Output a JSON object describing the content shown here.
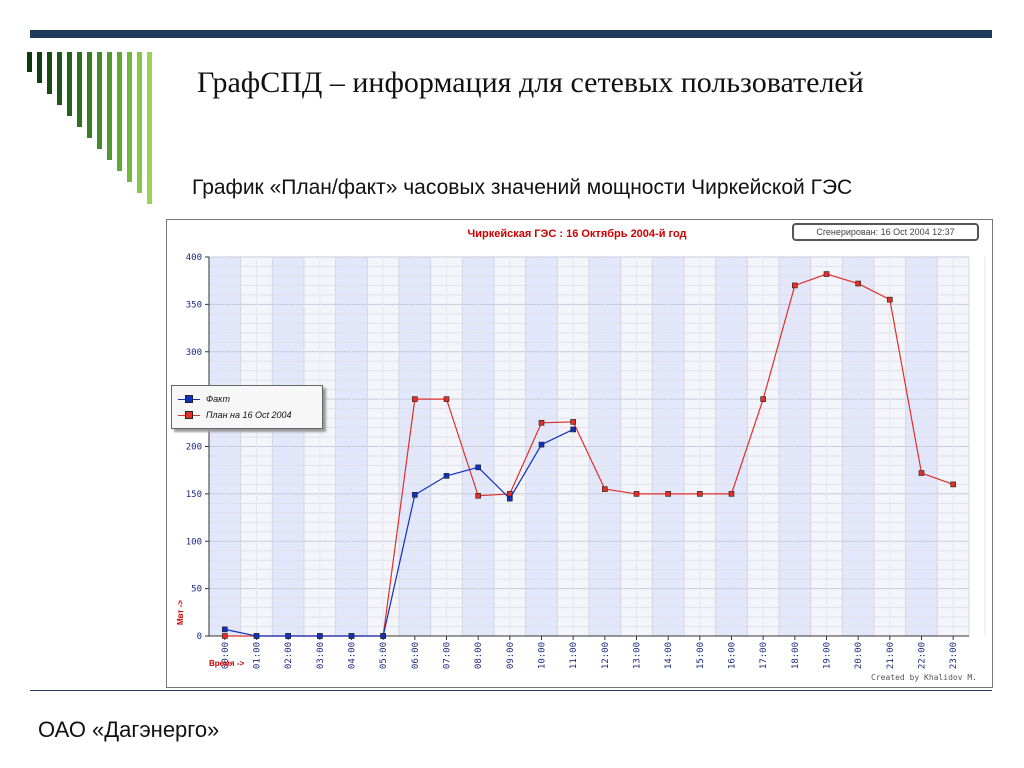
{
  "slide": {
    "title": "ГрафСПД – информация для сетевых пользователей",
    "subtitle": "График «План/факт» часовых значений мощности Чиркейской ГЭС",
    "footer": "ОАО «Дагэнерго»"
  },
  "colors": {
    "top_bar": "#1f3c5a",
    "deco_stripes": [
      "#0f3a10",
      "#123f12",
      "#174a14",
      "#1d5618",
      "#24631b",
      "#2d7020",
      "#377e25",
      "#438c2b",
      "#519a31",
      "#60a838",
      "#72b83f",
      "#86c648",
      "#9ad450"
    ],
    "title_red": "#cc0000",
    "fact_blue": "#1030c0",
    "plan_red": "#e0302a"
  },
  "chart_data": {
    "type": "line",
    "title": "Чиркейская ГЭС : 16  Октябрь 2004-й год",
    "generated_label": "Сгенерирован: 16 Oct 2004 12:37",
    "credit": "Created by Khalidov M.",
    "xlabel": "Время ->",
    "ylabel": "Мвт ->",
    "ylim": [
      0,
      400
    ],
    "yticks": [
      0,
      50,
      100,
      150,
      200,
      250,
      300,
      350,
      400
    ],
    "grid": true,
    "legend_position": "left",
    "x": [
      "00:00",
      "01:00",
      "02:00",
      "03:00",
      "04:00",
      "05:00",
      "06:00",
      "07:00",
      "08:00",
      "09:00",
      "10:00",
      "11:00",
      "12:00",
      "13:00",
      "14:00",
      "15:00",
      "16:00",
      "17:00",
      "18:00",
      "19:00",
      "20:00",
      "21:00",
      "22:00",
      "23:00"
    ],
    "series": [
      {
        "name": "Факт",
        "color": "#1030c0",
        "values": [
          7,
          0,
          0,
          0,
          0,
          0,
          149,
          169,
          178,
          145,
          202,
          218,
          null,
          null,
          null,
          null,
          null,
          null,
          null,
          null,
          null,
          null,
          null,
          null
        ]
      },
      {
        "name": "План на 16 Oct 2004",
        "color": "#e0302a",
        "values": [
          0,
          0,
          0,
          0,
          0,
          0,
          250,
          250,
          148,
          150,
          225,
          226,
          155,
          150,
          150,
          150,
          150,
          250,
          370,
          382,
          372,
          355,
          172,
          160
        ]
      }
    ]
  }
}
